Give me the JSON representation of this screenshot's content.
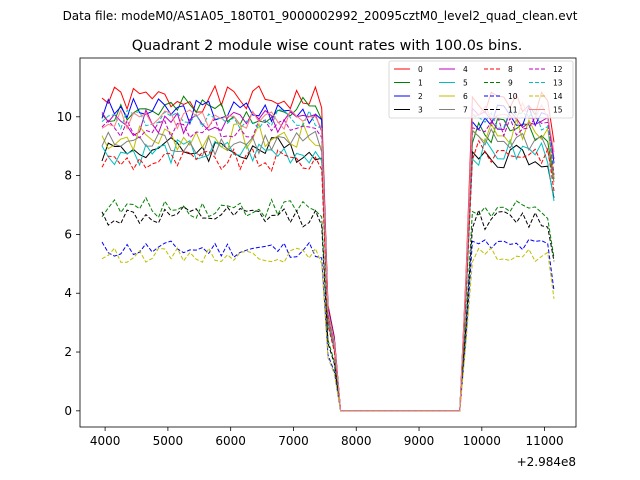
{
  "suptitle": "Data file: modeM0/AS1A05_180T01_9000002992_20095cztM0_level2_quad_clean.evt",
  "chart_data": {
    "type": "line",
    "title": "Quadrant 2 module wise count rates with 100.0s bins.",
    "xlabel": "",
    "ylabel": "",
    "x_offset_label": "+2.984e8",
    "xlim": [
      3600,
      11500
    ],
    "ylim": [
      -0.55,
      12.0
    ],
    "xticks": [
      4000,
      5000,
      6000,
      7000,
      8000,
      9000,
      10000,
      11000
    ],
    "yticks": [
      0,
      2,
      4,
      6,
      8,
      10
    ],
    "grid": false,
    "legend": {
      "placement": "top-right",
      "ncol": 4
    },
    "x": [
      3950,
      4050,
      4150,
      4250,
      4350,
      4450,
      4550,
      4650,
      4750,
      4850,
      4950,
      5050,
      5150,
      5250,
      5350,
      5450,
      5550,
      5650,
      5750,
      5850,
      5950,
      6050,
      6150,
      6250,
      6350,
      6450,
      6550,
      6650,
      6750,
      6850,
      6950,
      7050,
      7150,
      7250,
      7350,
      7450,
      7550,
      7650,
      7750,
      7850,
      7950,
      8050,
      8150,
      8250,
      8350,
      8450,
      8550,
      8650,
      8750,
      8850,
      8950,
      9050,
      9150,
      9250,
      9350,
      9450,
      9550,
      9650,
      9750,
      9850,
      9950,
      10050,
      10150,
      10250,
      10350,
      10450,
      10550,
      10650,
      10750,
      10850,
      10950,
      11050,
      11150
    ],
    "series": [
      {
        "name": "0",
        "color": "#ff0000",
        "dash": false,
        "base": 10.6,
        "amp": 0.45,
        "dip": 3.6,
        "post": 10.5,
        "seed": 1
      },
      {
        "name": "1",
        "color": "#008000",
        "dash": false,
        "base": 10.2,
        "amp": 0.5,
        "dip": 3.4,
        "post": 9.6,
        "seed": 2
      },
      {
        "name": "2",
        "color": "#0000ff",
        "dash": false,
        "base": 10.2,
        "amp": 0.45,
        "dip": 3.5,
        "post": 10.0,
        "seed": 3
      },
      {
        "name": "3",
        "color": "#000000",
        "dash": false,
        "base": 8.9,
        "amp": 0.45,
        "dip": 3.0,
        "post": 8.7,
        "seed": 4
      },
      {
        "name": "4",
        "color": "#bf00bf",
        "dash": false,
        "base": 9.8,
        "amp": 0.45,
        "dip": 3.3,
        "post": 9.9,
        "seed": 5
      },
      {
        "name": "5",
        "color": "#00bfbf",
        "dash": false,
        "base": 8.8,
        "amp": 0.45,
        "dip": 3.0,
        "post": 8.8,
        "seed": 6
      },
      {
        "name": "6",
        "color": "#bfbf00",
        "dash": false,
        "base": 9.3,
        "amp": 0.5,
        "dip": 3.2,
        "post": 9.5,
        "seed": 7
      },
      {
        "name": "7",
        "color": "#808080",
        "dash": false,
        "base": 9.1,
        "amp": 0.45,
        "dip": 3.1,
        "post": 9.2,
        "seed": 8
      },
      {
        "name": "8",
        "color": "#ff0000",
        "dash": true,
        "base": 8.5,
        "amp": 0.4,
        "dip": 2.9,
        "post": 8.8,
        "seed": 9
      },
      {
        "name": "9",
        "color": "#008000",
        "dash": true,
        "base": 6.9,
        "amp": 0.35,
        "dip": 2.4,
        "post": 6.8,
        "seed": 10
      },
      {
        "name": "10",
        "color": "#0000ff",
        "dash": true,
        "base": 5.5,
        "amp": 0.3,
        "dip": 1.9,
        "post": 5.6,
        "seed": 11
      },
      {
        "name": "11",
        "color": "#000000",
        "dash": true,
        "base": 6.6,
        "amp": 0.35,
        "dip": 2.3,
        "post": 6.5,
        "seed": 12
      },
      {
        "name": "12",
        "color": "#bf00bf",
        "dash": true,
        "base": 9.6,
        "amp": 0.35,
        "dip": 3.3,
        "post": 9.7,
        "seed": 13
      },
      {
        "name": "13",
        "color": "#00bfbf",
        "dash": true,
        "base": 9.9,
        "amp": 0.35,
        "dip": 3.4,
        "post": 9.9,
        "seed": 14
      },
      {
        "name": "14",
        "color": "#bfbf00",
        "dash": true,
        "base": 5.3,
        "amp": 0.25,
        "dip": 1.8,
        "post": 5.3,
        "seed": 15
      },
      {
        "name": "15",
        "color": "#ff7f7f",
        "dash": false,
        "base": 9.9,
        "amp": 0.35,
        "dip": 3.4,
        "post": 10.2,
        "seed": 16
      }
    ]
  }
}
